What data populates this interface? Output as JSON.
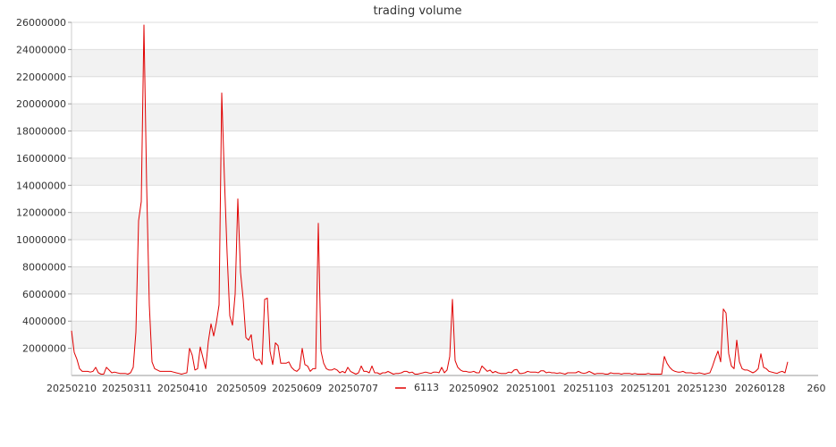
{
  "chart_data": {
    "type": "line",
    "title": "trading volume",
    "xlabel": "",
    "ylabel": "",
    "ylim": [
      0,
      26000000
    ],
    "y_ticks": [
      2000000,
      4000000,
      6000000,
      8000000,
      10000000,
      12000000,
      14000000,
      16000000,
      18000000,
      20000000,
      22000000,
      24000000,
      26000000
    ],
    "y_tick_labels": [
      "2000000",
      "4000000",
      "6000000",
      "8000000",
      "10000000",
      "12000000",
      "14000000",
      "16000000",
      "18000000",
      "20000000",
      "22000000",
      "24000000",
      "26000000"
    ],
    "x_tick_labels": [
      "20250210",
      "20250311",
      "20250410",
      "20250509",
      "20250609",
      "20250707",
      "20250902",
      "20251001",
      "20251103",
      "20251201",
      "20251230",
      "20260128",
      "260"
    ],
    "grid": "horizontal bands",
    "legend_position": "bottom",
    "series": [
      {
        "name": "6113",
        "color": "#e00000",
        "values": [
          3300000,
          1700000,
          1200000,
          500000,
          300000,
          300000,
          300000,
          250000,
          300000,
          600000,
          200000,
          100000,
          100000,
          600000,
          400000,
          200000,
          250000,
          200000,
          150000,
          150000,
          150000,
          100000,
          200000,
          600000,
          3200000,
          11400000,
          12800000,
          25800000,
          14000000,
          5200000,
          1000000,
          500000,
          400000,
          300000,
          300000,
          300000,
          300000,
          300000,
          250000,
          200000,
          150000,
          100000,
          150000,
          200000,
          2000000,
          1500000,
          400000,
          500000,
          2100000,
          1300000,
          500000,
          2500000,
          3800000,
          2900000,
          3900000,
          5200000,
          20800000,
          14500000,
          9000000,
          4400000,
          3700000,
          6000000,
          13000000,
          7600000,
          5600000,
          2800000,
          2600000,
          3000000,
          1300000,
          1100000,
          1200000,
          800000,
          5600000,
          5700000,
          1800000,
          800000,
          2400000,
          2200000,
          900000,
          900000,
          900000,
          1000000,
          600000,
          400000,
          300000,
          500000,
          2000000,
          800000,
          700000,
          300000,
          500000,
          500000,
          11200000,
          1800000,
          900000,
          500000,
          400000,
          400000,
          500000,
          400000,
          200000,
          300000,
          200000,
          600000,
          300000,
          200000,
          100000,
          200000,
          700000,
          300000,
          300000,
          200000,
          700000,
          200000,
          200000,
          100000,
          200000,
          200000,
          300000,
          200000,
          100000,
          150000,
          150000,
          200000,
          300000,
          300000,
          200000,
          250000,
          100000,
          100000,
          150000,
          200000,
          250000,
          200000,
          150000,
          250000,
          250000,
          200000,
          600000,
          200000,
          400000,
          1400000,
          5600000,
          1100000,
          600000,
          400000,
          300000,
          300000,
          250000,
          250000,
          300000,
          200000,
          200000,
          700000,
          500000,
          300000,
          400000,
          200000,
          300000,
          200000,
          150000,
          150000,
          150000,
          250000,
          200000,
          400000,
          450000,
          150000,
          150000,
          200000,
          300000,
          250000,
          250000,
          250000,
          200000,
          350000,
          350000,
          200000,
          250000,
          200000,
          200000,
          150000,
          200000,
          150000,
          100000,
          200000,
          200000,
          200000,
          200000,
          300000,
          200000,
          150000,
          200000,
          300000,
          200000,
          100000,
          150000,
          150000,
          150000,
          100000,
          100000,
          200000,
          150000,
          150000,
          150000,
          100000,
          150000,
          150000,
          150000,
          100000,
          150000,
          100000,
          100000,
          100000,
          100000,
          150000,
          100000,
          100000,
          100000,
          100000,
          100000,
          1400000,
          900000,
          600000,
          400000,
          300000,
          250000,
          250000,
          300000,
          200000,
          200000,
          200000,
          150000,
          150000,
          200000,
          150000,
          100000,
          150000,
          200000,
          700000,
          1300000,
          1800000,
          1000000,
          4900000,
          4600000,
          1600000,
          700000,
          500000,
          2600000,
          1000000,
          500000,
          400000,
          400000,
          300000,
          200000,
          300000,
          500000,
          1600000,
          600000,
          500000,
          300000,
          250000,
          200000,
          150000,
          250000,
          300000,
          200000,
          1000000
        ]
      }
    ]
  }
}
